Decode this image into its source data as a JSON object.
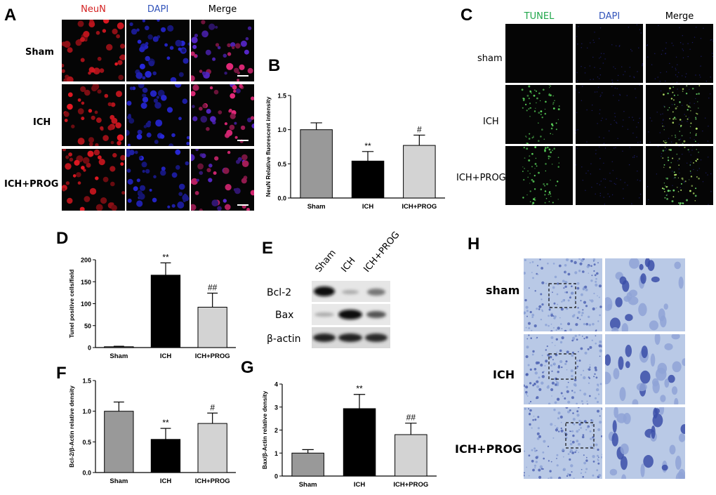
{
  "panel_letters": {
    "A": "A",
    "B": "B",
    "C": "C",
    "D": "D",
    "E": "E",
    "F": "F",
    "G": "G",
    "H": "H"
  },
  "panel_a": {
    "columns": [
      "NeuN",
      "DAPI",
      "Merge"
    ],
    "column_colors": [
      "#d42020",
      "#3355bb",
      "#000000"
    ],
    "rows": [
      "Sham",
      "ICH",
      "ICH+PROG"
    ]
  },
  "panel_c": {
    "columns": [
      "TUNEL",
      "DAPI",
      "Merge"
    ],
    "column_colors": [
      "#1fa64a",
      "#3355bb",
      "#000000"
    ],
    "rows": [
      "sham",
      "ICH",
      "ICH+PROG"
    ]
  },
  "panel_e": {
    "lanes": [
      "Sham",
      "ICH",
      "ICH+PROG"
    ],
    "proteins": [
      "Bcl-2",
      "Bax",
      "β-actin"
    ]
  },
  "panel_h": {
    "rows": [
      "sham",
      "ICH",
      "ICH+PROG"
    ]
  },
  "chart_data": [
    {
      "id": "B",
      "type": "bar",
      "categories": [
        "Sham",
        "ICH",
        "ICH+PROG"
      ],
      "values": [
        1.0,
        0.54,
        0.77
      ],
      "errors": [
        0.1,
        0.14,
        0.15
      ],
      "annotations": [
        "",
        "**",
        "#"
      ],
      "colors": [
        "#999999",
        "#000000",
        "#d3d3d3"
      ],
      "ylabel": "NeuN Relative fluorescent intensity",
      "ylim": [
        0,
        1.5
      ],
      "yticks": [
        "0.0",
        "0.5",
        "1.0",
        "1.5"
      ]
    },
    {
      "id": "D",
      "type": "bar",
      "categories": [
        "Sham",
        "ICH",
        "ICH+PROG"
      ],
      "values": [
        2,
        165,
        92
      ],
      "errors": [
        1,
        28,
        32
      ],
      "annotations": [
        "",
        "**",
        "##"
      ],
      "colors": [
        "#999999",
        "#000000",
        "#d3d3d3"
      ],
      "ylabel": "Tunel positive cells/field",
      "ylim": [
        0,
        200
      ],
      "yticks": [
        "0",
        "50",
        "100",
        "150",
        "200"
      ]
    },
    {
      "id": "F",
      "type": "bar",
      "categories": [
        "Sham",
        "ICH",
        "ICH+PROG"
      ],
      "values": [
        1.0,
        0.54,
        0.8
      ],
      "errors": [
        0.15,
        0.18,
        0.17
      ],
      "annotations": [
        "",
        "**",
        "#"
      ],
      "colors": [
        "#999999",
        "#000000",
        "#d3d3d3"
      ],
      "ylabel": "Bcl-2/β-Actin relative density",
      "ylim": [
        0,
        1.5
      ],
      "yticks": [
        "0.0",
        "0.5",
        "1.0",
        "1.5"
      ]
    },
    {
      "id": "G",
      "type": "bar",
      "categories": [
        "Sham",
        "ICH",
        "ICH+PROG"
      ],
      "values": [
        1.0,
        2.93,
        1.8
      ],
      "errors": [
        0.15,
        0.62,
        0.5
      ],
      "annotations": [
        "",
        "**",
        "##"
      ],
      "colors": [
        "#999999",
        "#000000",
        "#d3d3d3"
      ],
      "ylabel": "Bax/β-Actin relative density",
      "ylim": [
        0,
        4
      ],
      "yticks": [
        "0",
        "1",
        "2",
        "3",
        "4"
      ]
    }
  ]
}
